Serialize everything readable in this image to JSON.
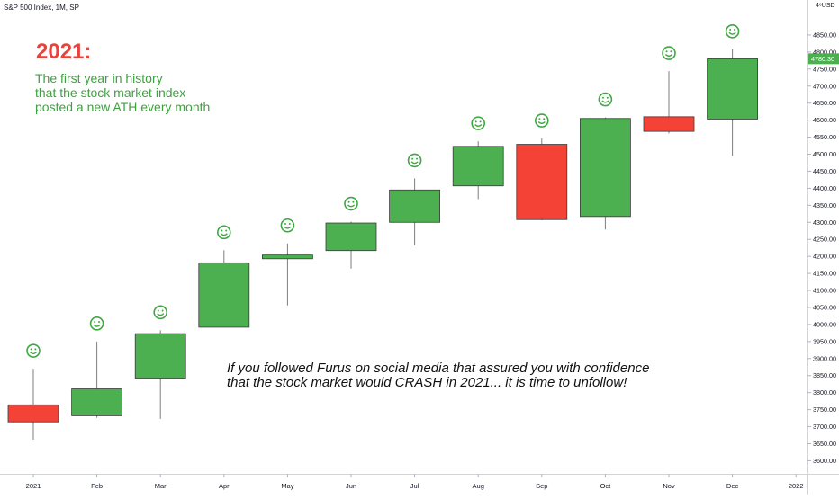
{
  "header": {
    "symbol": "S&P 500 Index, 1M, SP",
    "currency": "USD"
  },
  "annotations": {
    "headline": "2021:",
    "subtitle_lines": [
      "The first year in history",
      "that the stock market index",
      "posted a new ATH every month"
    ],
    "note_lines": [
      "If you followed Furus on social media that assured you with confidence",
      "that the stock market would CRASH in 2021... it is time to unfollow!"
    ]
  },
  "colors": {
    "up": "#4caf50",
    "down": "#f44336",
    "wick": "#7d7d7d",
    "smiley": "#3fa742",
    "price_tag": "#4caf50"
  },
  "chart_data": {
    "type": "candlestick",
    "title": "S&P 500 Index, 1M, SP",
    "x_ticks": [
      "2021",
      "Feb",
      "Mar",
      "Apr",
      "May",
      "Jun",
      "Jul",
      "Aug",
      "Sep",
      "Oct",
      "Nov",
      "Dec",
      "2022"
    ],
    "y_ticks": [
      3600,
      3650,
      3700,
      3750,
      3800,
      3850,
      3900,
      3950,
      4000,
      4050,
      4100,
      4150,
      4200,
      4250,
      4300,
      4350,
      4400,
      4450,
      4500,
      4550,
      4600,
      4650,
      4700,
      4750,
      4800,
      4850
    ],
    "y_range": [
      3580,
      4900
    ],
    "last_price": "4780.30",
    "candles": [
      {
        "month": "2021",
        "open": 3764,
        "high": 3870,
        "low": 3662,
        "close": 3714,
        "ath": true
      },
      {
        "month": "Feb",
        "open": 3732,
        "high": 3950,
        "low": 3726,
        "close": 3811,
        "ath": true
      },
      {
        "month": "Mar",
        "open": 3842,
        "high": 3983,
        "low": 3723,
        "close": 3973,
        "ath": true
      },
      {
        "month": "Apr",
        "open": 3992,
        "high": 4218,
        "low": 3992,
        "close": 4181,
        "ath": true
      },
      {
        "month": "May",
        "open": 4193,
        "high": 4238,
        "low": 4056,
        "close": 4204,
        "ath": true
      },
      {
        "month": "Jun",
        "open": 4217,
        "high": 4302,
        "low": 4164,
        "close": 4298,
        "ath": true
      },
      {
        "month": "Jul",
        "open": 4300,
        "high": 4429,
        "low": 4233,
        "close": 4395,
        "ath": true
      },
      {
        "month": "Aug",
        "open": 4407,
        "high": 4538,
        "low": 4368,
        "close": 4523,
        "ath": true
      },
      {
        "month": "Sep",
        "open": 4529,
        "high": 4546,
        "low": 4306,
        "close": 4308,
        "ath": true
      },
      {
        "month": "Oct",
        "open": 4317,
        "high": 4608,
        "low": 4279,
        "close": 4605,
        "ath": true
      },
      {
        "month": "Nov",
        "open": 4610,
        "high": 4744,
        "low": 4561,
        "close": 4567,
        "ath": true
      },
      {
        "month": "Dec",
        "open": 4603,
        "high": 4808,
        "low": 4495,
        "close": 4780,
        "ath": true
      }
    ]
  }
}
